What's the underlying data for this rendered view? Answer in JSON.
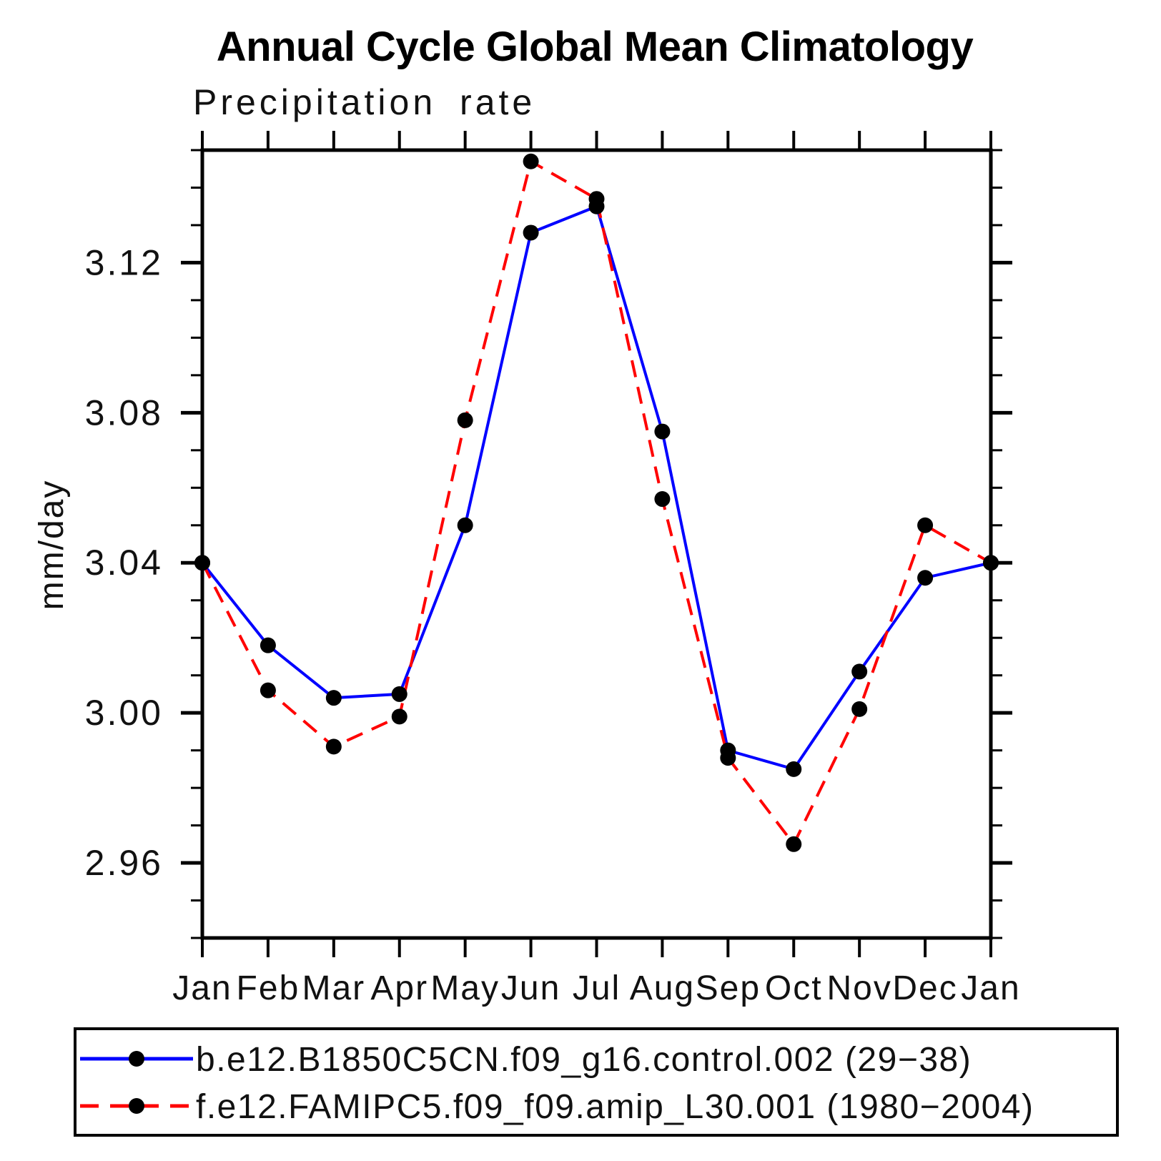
{
  "chart_data": {
    "type": "line",
    "title": "Annual Cycle Global Mean Climatology",
    "subtitle": "Precipitation rate",
    "ylabel": "mm/day",
    "categories": [
      "Jan",
      "Feb",
      "Mar",
      "Apr",
      "May",
      "Jun",
      "Jul",
      "Aug",
      "Sep",
      "Oct",
      "Nov",
      "Dec",
      "Jan"
    ],
    "ylim": [
      2.94,
      3.15
    ],
    "y_major_ticks": [
      2.96,
      3.0,
      3.04,
      3.08,
      3.12
    ],
    "y_tick_labels": [
      "2.96",
      "3.00",
      "3.04",
      "3.08",
      "3.12"
    ],
    "y_minor_step": 0.01,
    "grid": false,
    "legend_position": "bottom",
    "axis_color": "#000000",
    "marker_color": "#000000",
    "series": [
      {
        "name": "b.e12.B1850C5CN.f09_g16.control.002 (29−38)",
        "color": "#0000ff",
        "style": "solid",
        "marker": "black-dot",
        "values": [
          3.04,
          3.018,
          3.004,
          3.005,
          3.05,
          3.128,
          3.135,
          3.075,
          2.99,
          2.985,
          3.011,
          3.036,
          3.04
        ]
      },
      {
        "name": "f.e12.FAMIPC5.f09_f09.amip_L30.001 (1980−2004)",
        "color": "#ff0000",
        "style": "dashed",
        "marker": "black-dot",
        "values": [
          3.04,
          3.006,
          2.991,
          2.999,
          3.078,
          3.147,
          3.137,
          3.057,
          2.988,
          2.965,
          3.001,
          3.05,
          3.04
        ]
      }
    ]
  }
}
